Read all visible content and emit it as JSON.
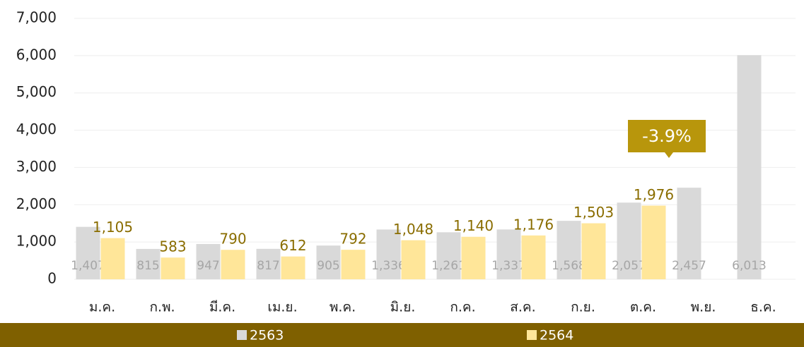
{
  "chart_data": {
    "type": "bar",
    "categories": [
      "ม.ค.",
      "ก.พ.",
      "มี.ค.",
      "เม.ย.",
      "พ.ค.",
      "มิ.ย.",
      "ก.ค.",
      "ส.ค.",
      "ก.ย.",
      "ต.ค.",
      "พ.ย.",
      "ธ.ค."
    ],
    "series": [
      {
        "name": "2563",
        "color": "#d9d9d9",
        "values": [
          1407,
          815,
          947,
          817,
          905,
          1336,
          1261,
          1337,
          1568,
          2057,
          2457,
          6013
        ],
        "value_labels": [
          "1,407",
          "815",
          "947",
          "817",
          "905",
          "1,336",
          "1,261",
          "1,337",
          "1,568",
          "2,057",
          "2,457",
          "6,013"
        ]
      },
      {
        "name": "2564",
        "color": "#ffe699",
        "values": [
          1105,
          583,
          790,
          612,
          792,
          1048,
          1140,
          1176,
          1503,
          1976,
          null,
          null
        ],
        "value_labels": [
          "1,105",
          "583",
          "790",
          "612",
          "792",
          "1,048",
          "1,140",
          "1,176",
          "1,503",
          "1,976",
          null,
          null
        ]
      }
    ],
    "annotation": "-3.9%",
    "ylim": [
      0,
      7000
    ],
    "yticks": [
      0,
      {
        "value": 1000,
        "label": "1,000"
      },
      {
        "value": 2000,
        "label": "2,000"
      },
      {
        "value": 3000,
        "label": "3,000"
      },
      {
        "value": 4000,
        "label": "4,000"
      },
      {
        "value": 5000,
        "label": "5,000"
      },
      {
        "value": 6000,
        "label": "6,000"
      },
      {
        "value": 7000,
        "label": "7,000"
      }
    ],
    "grid": true
  }
}
